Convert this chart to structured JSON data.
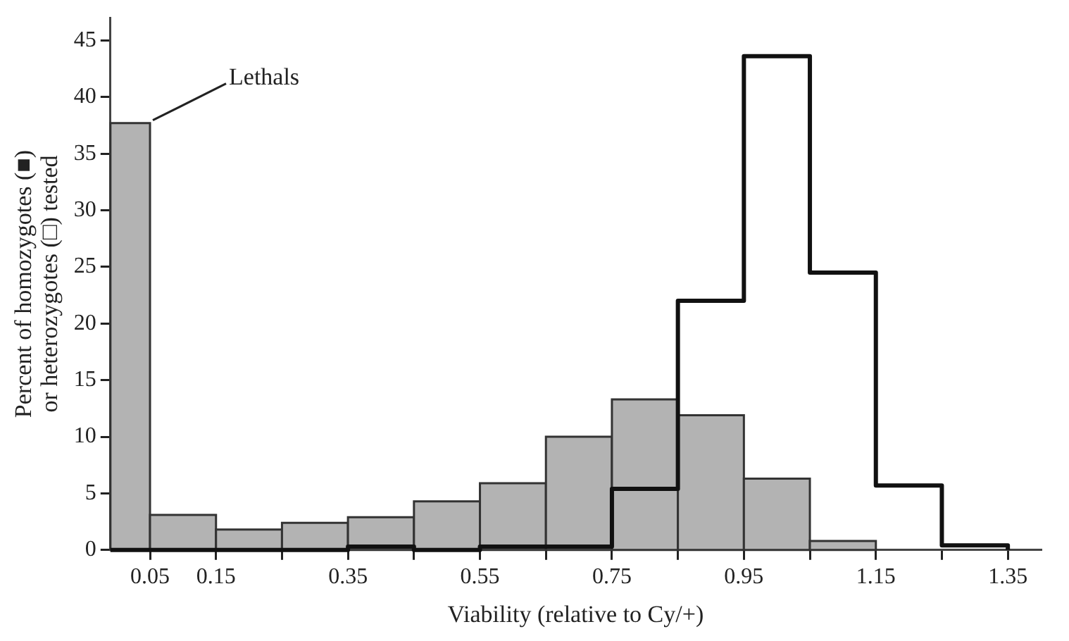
{
  "chart_data": {
    "type": "histogram",
    "xlabel": "Viability (relative to Cy/+)",
    "ylabel": "Percent of homozygotes (■) or heterozygotes (□) tested",
    "bins": [
      -0.01,
      0.05,
      0.15,
      0.25,
      0.35,
      0.45,
      0.55,
      0.65,
      0.75,
      0.85,
      0.95,
      1.05,
      1.15,
      1.25,
      1.35
    ],
    "series": [
      {
        "color": "#b3b3b3",
        "values": [
          37.7,
          3.1,
          1.8,
          2.4,
          2.9,
          4.3,
          5.9,
          10.0,
          13.3,
          11.9,
          6.3,
          0.8,
          0,
          0
        ]
      },
      {
        "color": "#111111",
        "values": [
          0,
          0,
          0,
          0,
          0.3,
          0,
          0.3,
          0.3,
          5.4,
          22.0,
          43.6,
          24.5,
          5.7,
          0.4
        ]
      }
    ],
    "xlim": [
      -0.01,
      1.4
    ],
    "ylim": [
      0,
      47
    ],
    "xticks": [
      0.05,
      0.15,
      {
        "value": 0.25,
        "label": null
      },
      0.35,
      {
        "value": 0.45,
        "label": null
      },
      0.55,
      {
        "value": 0.65,
        "label": null
      },
      0.75,
      {
        "value": 0.85,
        "label": null
      },
      0.95,
      {
        "value": 1.05,
        "label": null
      },
      1.15,
      {
        "value": 1.25,
        "label": null
      },
      1.35
    ],
    "yticks": [
      0,
      5,
      10,
      15,
      20,
      25,
      30,
      35,
      40,
      45
    ],
    "annotations": [
      {
        "text": "Lethals",
        "x": 0.05,
        "y": 37.7
      }
    ]
  }
}
